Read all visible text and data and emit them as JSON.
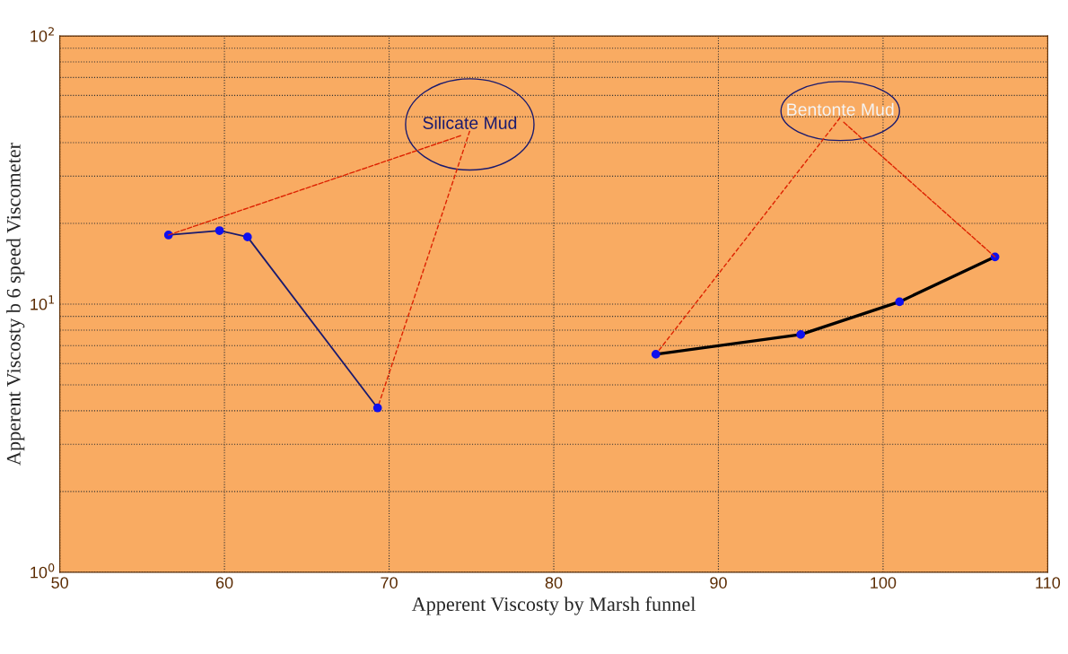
{
  "chart_data": {
    "type": "line",
    "xlabel": "Apperent Viscosty by Marsh funnel",
    "ylabel": "Apperent Viscosty b 6 speed Viscometer",
    "log": "y",
    "xlim": [
      50,
      110
    ],
    "xticks": [
      50,
      60,
      70,
      80,
      90,
      100,
      110
    ],
    "ylim": [
      1,
      100
    ],
    "yticks": [
      {
        "value": 1,
        "label": "10$^{0}$"
      },
      {
        "value": 10,
        "label": "10$^{1}$"
      },
      {
        "value": 100,
        "label": "10$^{2}$"
      }
    ],
    "grid": true,
    "marker": "circle",
    "line_style": "solid",
    "series": [
      {
        "color": "#1a1a6e",
        "x": [
          56.6,
          59.7,
          61.4,
          69.3
        ],
        "values": [
          18.1,
          18.8,
          17.8,
          4.1
        ]
      },
      {
        "color": "#000000",
        "x": [
          86.2,
          95.0,
          101.0,
          106.8
        ],
        "values": [
          6.5,
          7.7,
          10.2,
          15.0
        ]
      }
    ],
    "annotations": [
      {
        "text": "Silicate Mud",
        "x": 56.6,
        "y": 18.1
      },
      {
        "text": "Bentonte Mud",
        "x": 106.8,
        "y": 15.0
      }
    ]
  }
}
